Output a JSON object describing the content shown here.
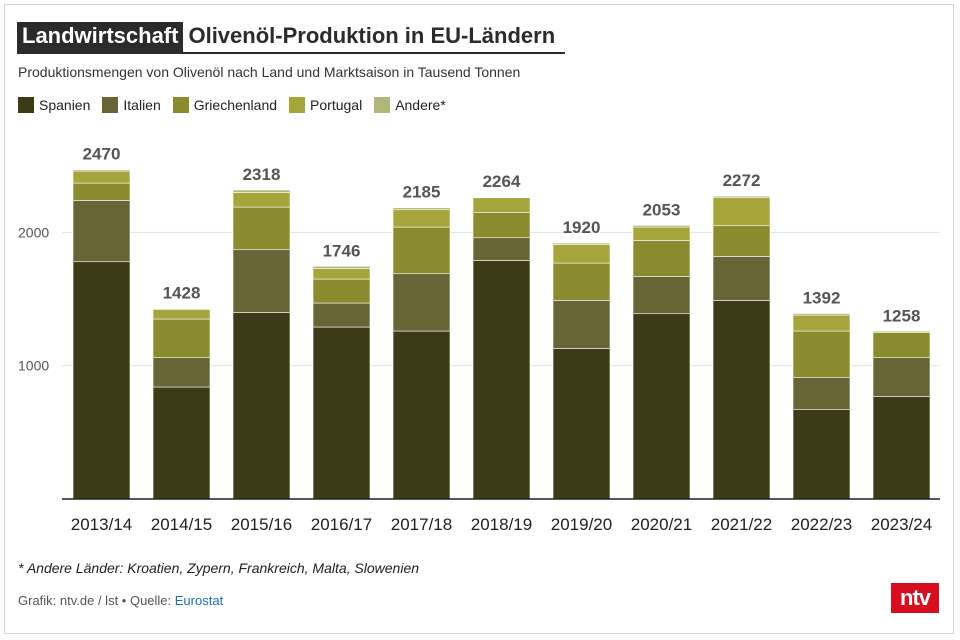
{
  "header": {
    "category": "Landwirtschaft",
    "title": "Olivenöl-Produktion in EU-Ländern",
    "subtitle": "Produktionsmengen von Olivenöl nach Land und Marktsaison in Tausend Tonnen"
  },
  "footnote": "* Andere Länder: Kroatien, Zypern, Frankreich, Malta, Slowenien",
  "source": {
    "prefix": "Grafik: ntv.de / lst • Quelle: ",
    "link_text": "Eurostat"
  },
  "logo_text": "ntv",
  "colors": {
    "Spanien": "#3d3b17",
    "Italien": "#676535",
    "Griechenland": "#8a8a2f",
    "Portugal": "#a6a53c",
    "Andere*": "#b1b77b",
    "logo": "#d50f1e",
    "link": "#1a6fb5"
  },
  "chart_data": {
    "type": "bar",
    "stacked": true,
    "categories": [
      "2013/14",
      "2014/15",
      "2015/16",
      "2016/17",
      "2017/18",
      "2018/19",
      "2019/20",
      "2020/21",
      "2021/22",
      "2022/23",
      "2023/24"
    ],
    "series": [
      {
        "name": "Spanien",
        "values": [
          1780,
          840,
          1400,
          1290,
          1260,
          1790,
          1130,
          1390,
          1490,
          670,
          770
        ]
      },
      {
        "name": "Italien",
        "values": [
          460,
          220,
          470,
          180,
          430,
          170,
          360,
          280,
          330,
          240,
          290
        ]
      },
      {
        "name": "Griechenland",
        "values": [
          130,
          290,
          320,
          180,
          350,
          190,
          280,
          270,
          230,
          350,
          190
        ]
      },
      {
        "name": "Portugal",
        "values": [
          90,
          70,
          110,
          80,
          130,
          110,
          140,
          100,
          210,
          120,
          8
        ]
      },
      {
        "name": "Andere*",
        "values": [
          10,
          8,
          18,
          16,
          15,
          4,
          10,
          13,
          12,
          12,
          0
        ]
      }
    ],
    "totals": [
      2470,
      1428,
      2318,
      1746,
      2185,
      2264,
      1920,
      2053,
      2272,
      1392,
      1258
    ],
    "yticks": [
      1000,
      2000
    ],
    "ylim": [
      0,
      2700
    ],
    "xlabel": "",
    "ylabel": "",
    "legend_position": "top-left",
    "grid": true
  }
}
